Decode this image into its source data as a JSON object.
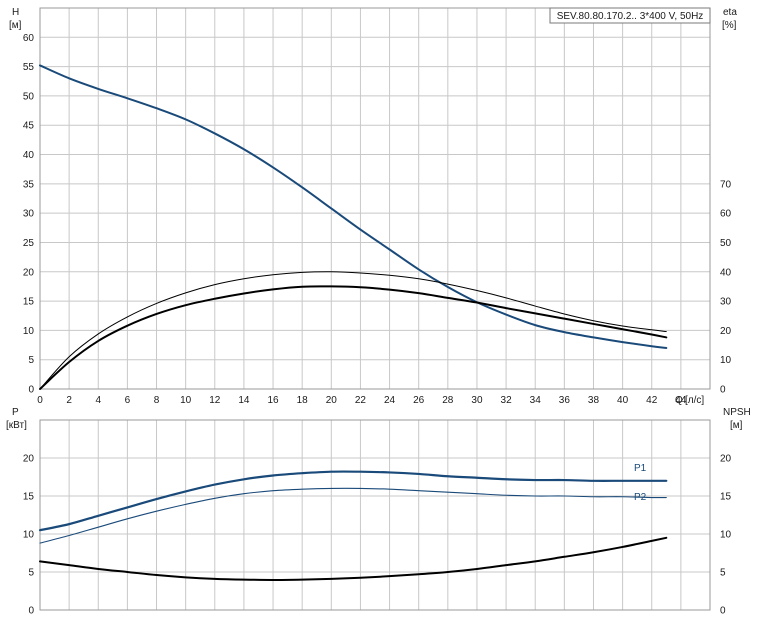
{
  "chart_data": [
    {
      "type": "line",
      "title": "SEV.80.80.170.2.. 3*400 V, 50Hz",
      "ylabel_left": "H",
      "ylabel_left_unit": "[м]",
      "ylabel_right": "eta",
      "ylabel_right_unit": "[%]",
      "xlabel": "Q",
      "xlabel_unit": "[л/с]",
      "xlim": [
        0,
        46
      ],
      "ylim_left": [
        0,
        65
      ],
      "ylim_right": [
        0,
        130
      ],
      "x_ticks": [
        "0",
        "2",
        "4",
        "6",
        "8",
        "10",
        "12",
        "14",
        "16",
        "18",
        "20",
        "22",
        "24",
        "26",
        "28",
        "30",
        "32",
        "34",
        "36",
        "38",
        "40",
        "42",
        "44"
      ],
      "y_left_ticks": [
        "0",
        "5",
        "10",
        "15",
        "20",
        "25",
        "30",
        "35",
        "40",
        "45",
        "50",
        "55",
        "60"
      ],
      "y_right_ticks": [
        "0",
        "10",
        "20",
        "30",
        "40",
        "50",
        "60",
        "70"
      ],
      "grid": true,
      "colors": {
        "head": "#1a4a7a",
        "efficiency": "#000000"
      },
      "series": [
        {
          "key": "head",
          "axis": "left",
          "x": [
            0,
            2,
            4,
            6,
            8,
            10,
            12,
            14,
            16,
            18,
            20,
            22,
            24,
            26,
            28,
            30,
            32,
            34,
            36,
            38,
            40,
            42,
            43
          ],
          "values": [
            55.2,
            53.0,
            51.2,
            49.6,
            47.9,
            46.0,
            43.6,
            40.9,
            37.8,
            34.4,
            30.8,
            27.2,
            23.8,
            20.4,
            17.4,
            14.8,
            12.7,
            10.9,
            9.7,
            8.8,
            8.0,
            7.3,
            7.0
          ]
        },
        {
          "key": "eta_thick",
          "axis": "right",
          "x": [
            0,
            2,
            4,
            6,
            8,
            10,
            12,
            14,
            16,
            18,
            20,
            22,
            24,
            26,
            28,
            30,
            32,
            34,
            36,
            38,
            40,
            42,
            43
          ],
          "values": [
            0,
            9.2,
            16.4,
            21.6,
            25.6,
            28.6,
            30.8,
            32.6,
            34.0,
            34.9,
            35.0,
            34.7,
            33.9,
            32.7,
            31.1,
            29.5,
            27.6,
            25.8,
            24.0,
            22.2,
            20.4,
            18.6,
            17.6
          ]
        },
        {
          "key": "eta_thin",
          "axis": "right",
          "x": [
            0,
            2,
            4,
            6,
            8,
            10,
            12,
            14,
            16,
            18,
            20,
            22,
            24,
            26,
            28,
            30,
            32,
            34,
            36,
            38,
            40,
            42,
            43
          ],
          "values": [
            0,
            11.0,
            18.8,
            24.6,
            29.2,
            32.8,
            35.6,
            37.6,
            39.0,
            39.8,
            40.0,
            39.6,
            38.8,
            37.6,
            35.8,
            33.6,
            31.1,
            28.3,
            25.6,
            23.3,
            21.5,
            20.2,
            19.6
          ]
        }
      ]
    },
    {
      "type": "line",
      "ylabel_left": "P",
      "ylabel_left_unit": "[кВт]",
      "ylabel_right": "NPSH",
      "ylabel_right_unit": "[м]",
      "xlim": [
        0,
        46
      ],
      "ylim_left": [
        0,
        25
      ],
      "ylim_right": [
        0,
        25
      ],
      "y_left_ticks": [
        "0",
        "5",
        "10",
        "15",
        "20"
      ],
      "y_right_ticks": [
        "0",
        "5",
        "10",
        "15",
        "20"
      ],
      "grid": true,
      "colors": {
        "p1": "#1a4a7a",
        "p2": "#1a4a7a",
        "npsh": "#000000"
      },
      "series": [
        {
          "key": "p1",
          "name": "P1",
          "axis": "left",
          "x": [
            0,
            2,
            4,
            6,
            8,
            10,
            12,
            14,
            16,
            18,
            20,
            22,
            24,
            26,
            28,
            30,
            32,
            34,
            36,
            38,
            40,
            42,
            43
          ],
          "values": [
            10.5,
            11.3,
            12.4,
            13.5,
            14.6,
            15.6,
            16.5,
            17.2,
            17.7,
            18.0,
            18.2,
            18.2,
            18.1,
            17.9,
            17.6,
            17.4,
            17.2,
            17.1,
            17.1,
            17.0,
            17.0,
            17.0,
            17.0
          ]
        },
        {
          "key": "p2",
          "name": "P2",
          "axis": "left",
          "x": [
            0,
            2,
            4,
            6,
            8,
            10,
            12,
            14,
            16,
            18,
            20,
            22,
            24,
            26,
            28,
            30,
            32,
            34,
            36,
            38,
            40,
            42,
            43
          ],
          "values": [
            8.8,
            9.8,
            10.9,
            12.0,
            13.0,
            13.9,
            14.7,
            15.3,
            15.7,
            15.9,
            16.0,
            16.0,
            15.9,
            15.7,
            15.5,
            15.3,
            15.1,
            15.0,
            15.0,
            14.9,
            14.9,
            14.8,
            14.8
          ]
        },
        {
          "key": "npsh",
          "axis": "right",
          "x": [
            0,
            2,
            4,
            6,
            8,
            10,
            12,
            14,
            16,
            18,
            20,
            22,
            24,
            26,
            28,
            30,
            32,
            34,
            36,
            38,
            40,
            42,
            43
          ],
          "values": [
            6.4,
            5.9,
            5.4,
            5.0,
            4.6,
            4.3,
            4.1,
            4.0,
            3.95,
            4.0,
            4.1,
            4.25,
            4.45,
            4.7,
            5.0,
            5.4,
            5.9,
            6.4,
            7.0,
            7.6,
            8.3,
            9.1,
            9.5
          ]
        }
      ]
    }
  ]
}
